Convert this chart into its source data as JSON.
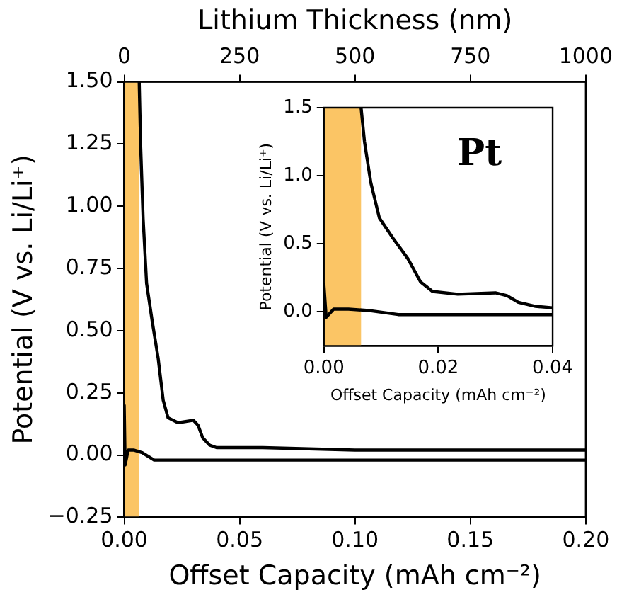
{
  "chart_data": [
    {
      "type": "line",
      "xlabel": "Offset Capacity (mAh cm⁻²)",
      "ylabel": "Potential (V vs. Li/Li⁺)",
      "x2label": "Lithium Thickness (nm)",
      "xlim": [
        0,
        0.2
      ],
      "xticks": [
        {
          "value": 0,
          "label": "0.00"
        },
        {
          "value": 0.05,
          "label": "0.05"
        },
        {
          "value": 0.1,
          "label": "0.10"
        },
        {
          "value": 0.15,
          "label": "0.15"
        },
        {
          "value": 0.2,
          "label": "0.20"
        }
      ],
      "ylim": [
        -0.25,
        1.5
      ],
      "yticks": [
        {
          "value": -0.25,
          "label": "−0.25"
        },
        {
          "value": 0,
          "label": "0.00"
        },
        {
          "value": 0.25,
          "label": "0.25"
        },
        {
          "value": 0.5,
          "label": "0.50"
        },
        {
          "value": 0.75,
          "label": "0.75"
        },
        {
          "value": 1,
          "label": "1.00"
        },
        {
          "value": 1.25,
          "label": "1.25"
        },
        {
          "value": 1.5,
          "label": "1.50"
        }
      ],
      "x2lim": [
        0,
        1000
      ],
      "x2ticks": [
        0,
        250,
        500,
        750,
        1000
      ],
      "grid": false,
      "legend": false,
      "marker": "none",
      "line_style": "solid",
      "bands": [
        {
          "axis": "x",
          "from": 0,
          "to": 0.0065,
          "color": "#fbc565"
        }
      ],
      "series": [
        {
          "color": "#000000",
          "x": [
            0.0065,
            0.0071,
            0.0082,
            0.0097,
            0.0121,
            0.0147,
            0.0169,
            0.019,
            0.0234,
            0.03,
            0.032,
            0.034,
            0.037,
            0.04,
            0.06,
            0.1,
            0.15,
            0.2
          ],
          "values": [
            1.5,
            1.25,
            0.95,
            0.69,
            0.54,
            0.39,
            0.22,
            0.15,
            0.13,
            0.14,
            0.12,
            0.07,
            0.04,
            0.03,
            0.03,
            0.02,
            0.02,
            0.02
          ]
        },
        {
          "color": "#000000",
          "x": [
            0,
            0.0004,
            0.0017,
            0.0043,
            0.0078,
            0.013,
            0.04,
            0.1,
            0.2
          ],
          "values": [
            0.2,
            -0.04,
            0.02,
            0.02,
            0.01,
            -0.02,
            -0.02,
            -0.02,
            -0.02
          ]
        }
      ]
    },
    {
      "type": "line",
      "xlabel": "Offset Capacity (mAh cm⁻²)",
      "ylabel": "Potential (V vs. Li/Li⁺)",
      "annotations": [
        "Pt"
      ],
      "xlim": [
        0,
        0.04
      ],
      "xticks": [
        {
          "value": 0,
          "label": "0.00"
        },
        {
          "value": 0.02,
          "label": "0.02"
        },
        {
          "value": 0.04,
          "label": "0.04"
        }
      ],
      "ylim": [
        -0.25,
        1.5
      ],
      "yticks": [
        {
          "value": 0,
          "label": "0.0"
        },
        {
          "value": 0.5,
          "label": "0.5"
        },
        {
          "value": 1,
          "label": "1.0"
        },
        {
          "value": 1.5,
          "label": "1.5"
        }
      ],
      "grid": false,
      "legend": false,
      "marker": "none",
      "line_style": "solid",
      "bands": [
        {
          "axis": "x",
          "from": 0,
          "to": 0.0065,
          "color": "#fbc565"
        }
      ],
      "series": [
        {
          "color": "#000000",
          "x": [
            0.0065,
            0.0071,
            0.0082,
            0.0097,
            0.0121,
            0.0147,
            0.0169,
            0.019,
            0.0234,
            0.03,
            0.032,
            0.034,
            0.037,
            0.04
          ],
          "values": [
            1.5,
            1.25,
            0.95,
            0.69,
            0.54,
            0.39,
            0.22,
            0.15,
            0.13,
            0.14,
            0.12,
            0.07,
            0.04,
            0.03
          ]
        },
        {
          "color": "#000000",
          "x": [
            0,
            0.0004,
            0.0017,
            0.0043,
            0.0078,
            0.013,
            0.04
          ],
          "values": [
            0.2,
            -0.04,
            0.02,
            0.02,
            0.01,
            -0.02,
            -0.02
          ]
        }
      ]
    }
  ]
}
